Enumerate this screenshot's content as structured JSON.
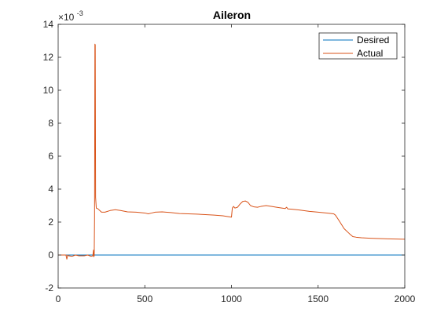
{
  "chart_data": {
    "type": "line",
    "title": "Aileron",
    "xlabel": "",
    "ylabel": "",
    "y_exponent_label": "×10",
    "y_exponent_power": "-3",
    "xlim": [
      0,
      2000
    ],
    "ylim": [
      -2,
      14
    ],
    "x_ticks": [
      0,
      500,
      1000,
      1500,
      2000
    ],
    "y_ticks": [
      -2,
      0,
      2,
      4,
      6,
      8,
      10,
      12,
      14
    ],
    "x_tick_labels": [
      "0",
      "500",
      "1000",
      "1500",
      "2000"
    ],
    "y_tick_labels": [
      "-2",
      "0",
      "2",
      "4",
      "6",
      "8",
      "10",
      "12",
      "14"
    ],
    "grid": false,
    "legend_position": "top-right",
    "series": [
      {
        "name": "Desired",
        "color": "#0072BD",
        "x": [
          0,
          2000
        ],
        "y": [
          0,
          0
        ]
      },
      {
        "name": "Actual",
        "color": "#D95319",
        "x": [
          0,
          30,
          45,
          50,
          55,
          60,
          80,
          100,
          120,
          150,
          170,
          190,
          200,
          204,
          205,
          208,
          210,
          212,
          214,
          216,
          220,
          230,
          250,
          270,
          300,
          330,
          360,
          400,
          450,
          500,
          520,
          540,
          560,
          600,
          650,
          700,
          750,
          800,
          850,
          900,
          950,
          1000,
          1005,
          1012,
          1020,
          1035,
          1050,
          1065,
          1080,
          1095,
          1110,
          1130,
          1150,
          1170,
          1200,
          1230,
          1260,
          1290,
          1310,
          1318,
          1325,
          1350,
          1400,
          1450,
          1500,
          1550,
          1590,
          1600,
          1620,
          1650,
          1680,
          1700,
          1720,
          1750,
          1800,
          1850,
          1900,
          1950,
          2000
        ],
        "y": [
          0.0,
          0.0,
          0.0,
          -0.25,
          0.0,
          -0.05,
          -0.08,
          0.0,
          -0.05,
          -0.05,
          0.0,
          -0.08,
          -0.05,
          0.3,
          -0.1,
          -0.05,
          2.2,
          12.8,
          12.75,
          3.5,
          2.85,
          2.8,
          2.6,
          2.6,
          2.7,
          2.75,
          2.7,
          2.62,
          2.6,
          2.55,
          2.5,
          2.55,
          2.6,
          2.62,
          2.58,
          2.52,
          2.5,
          2.48,
          2.45,
          2.42,
          2.38,
          2.3,
          2.85,
          2.95,
          2.85,
          2.9,
          3.1,
          3.25,
          3.28,
          3.2,
          3.0,
          2.92,
          2.9,
          2.95,
          3.0,
          2.95,
          2.9,
          2.85,
          2.82,
          2.9,
          2.8,
          2.78,
          2.72,
          2.65,
          2.6,
          2.55,
          2.5,
          2.42,
          2.1,
          1.6,
          1.3,
          1.12,
          1.08,
          1.05,
          1.02,
          1.0,
          0.98,
          0.97,
          0.96
        ]
      }
    ]
  }
}
